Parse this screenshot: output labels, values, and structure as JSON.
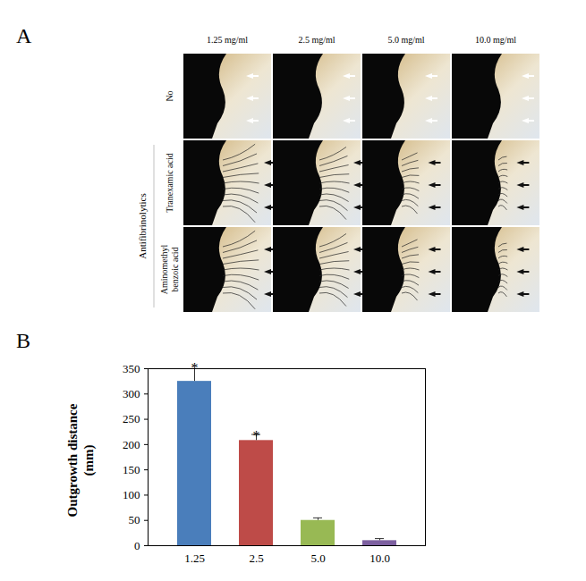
{
  "panel_a": {
    "label": "A",
    "columns": [
      "1.25 mg/ml",
      "2.5 mg/ml",
      "5.0 mg/ml",
      "10.0 mg/ml"
    ],
    "rows": [
      "No",
      "Tranexamic acid",
      "Aminomethyl benzoic acid"
    ],
    "group_label": "Antifibrinolytics"
  },
  "panel_b": {
    "label": "B"
  },
  "chart_data": {
    "type": "bar",
    "categories": [
      "1.25",
      "2.5",
      "5.0",
      "10.0"
    ],
    "values": [
      325,
      208,
      50,
      10
    ],
    "errors": [
      30,
      12,
      5,
      4
    ],
    "colors": [
      "#4a7ebb",
      "#be4b48",
      "#98b954",
      "#7d60a0"
    ],
    "ylabel": "Outgrowth distance\n(mm)",
    "ylim": [
      0,
      350
    ],
    "yticks": [
      0,
      50,
      100,
      150,
      200,
      250,
      300,
      350
    ],
    "annotations": [
      {
        "category": "1.25",
        "text": "*"
      },
      {
        "category": "2.5",
        "text": "*"
      }
    ]
  }
}
